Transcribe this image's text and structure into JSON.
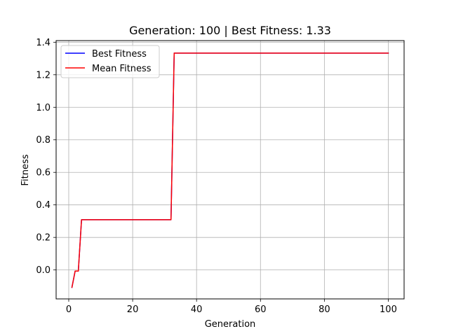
{
  "chart_data": {
    "type": "line",
    "title": "Generation: 100 | Best Fitness: 1.33",
    "xlabel": "Generation",
    "ylabel": "Fitness",
    "xlim": [
      -3.95,
      104.95
    ],
    "ylim": [
      -0.178,
      1.41
    ],
    "xticks": [
      0,
      20,
      40,
      60,
      80,
      100
    ],
    "yticks": [
      0.0,
      0.2,
      0.4,
      0.6,
      0.8,
      1.0,
      1.2,
      1.4
    ],
    "xtick_labels": [
      "0",
      "20",
      "40",
      "60",
      "80",
      "100"
    ],
    "ytick_labels": [
      "0.0",
      "0.2",
      "0.4",
      "0.6",
      "0.8",
      "1.0",
      "1.2",
      "1.4"
    ],
    "grid": true,
    "legend_position": "top-left",
    "series": [
      {
        "name": "Best Fitness",
        "color": "#0000ff",
        "x": [
          1,
          2,
          3,
          4,
          32,
          33,
          100
        ],
        "y": [
          -0.107,
          -0.007,
          -0.007,
          0.309,
          0.309,
          1.333,
          1.333
        ]
      },
      {
        "name": "Mean Fitness",
        "color": "#ff0000",
        "x": [
          1,
          2,
          3,
          4,
          32,
          33,
          100
        ],
        "y": [
          -0.107,
          -0.007,
          -0.007,
          0.309,
          0.309,
          1.333,
          1.333
        ]
      }
    ]
  }
}
